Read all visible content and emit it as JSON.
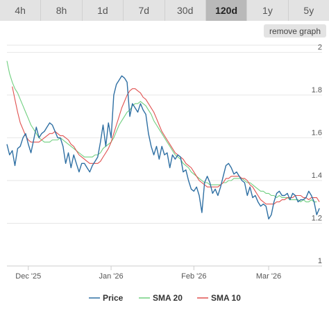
{
  "tabs": [
    {
      "label": "4h"
    },
    {
      "label": "8h"
    },
    {
      "label": "1d"
    },
    {
      "label": "7d"
    },
    {
      "label": "30d"
    },
    {
      "label": "120d"
    },
    {
      "label": "1y"
    },
    {
      "label": "5y"
    }
  ],
  "active_tab": "120d",
  "remove_graph_label": "remove graph",
  "chart_data": {
    "type": "line",
    "ylim": [
      1.0,
      2.05
    ],
    "y_ticks": [
      1,
      1.2,
      1.4,
      1.6,
      1.8,
      2
    ],
    "x_ticks": [
      {
        "label": "Dec '25",
        "x": 8
      },
      {
        "label": "Jan '26",
        "x": 39
      },
      {
        "label": "Feb '26",
        "x": 70
      },
      {
        "label": "Mar '26",
        "x": 98
      }
    ],
    "x_range": [
      0,
      118
    ],
    "legend_position": "bottom",
    "grid": true,
    "series": [
      {
        "name": "Price",
        "color": "#2e6fa3",
        "values": [
          1.57,
          1.52,
          1.54,
          1.47,
          1.55,
          1.56,
          1.6,
          1.62,
          1.57,
          1.53,
          1.59,
          1.65,
          1.6,
          1.62,
          1.63,
          1.65,
          1.67,
          1.66,
          1.63,
          1.6,
          1.6,
          1.56,
          1.48,
          1.53,
          1.46,
          1.52,
          1.48,
          1.44,
          1.48,
          1.48,
          1.46,
          1.44,
          1.47,
          1.49,
          1.51,
          1.58,
          1.66,
          1.56,
          1.67,
          1.6,
          1.8,
          1.85,
          1.87,
          1.89,
          1.88,
          1.86,
          1.7,
          1.76,
          1.74,
          1.72,
          1.76,
          1.73,
          1.71,
          1.62,
          1.56,
          1.52,
          1.56,
          1.5,
          1.56,
          1.52,
          1.53,
          1.46,
          1.52,
          1.5,
          1.52,
          1.51,
          1.44,
          1.45,
          1.4,
          1.36,
          1.35,
          1.37,
          1.33,
          1.25,
          1.39,
          1.42,
          1.39,
          1.34,
          1.36,
          1.33,
          1.37,
          1.42,
          1.47,
          1.48,
          1.46,
          1.43,
          1.44,
          1.42,
          1.4,
          1.39,
          1.33,
          1.37,
          1.32,
          1.33,
          1.3,
          1.28,
          1.29,
          1.28,
          1.22,
          1.24,
          1.3,
          1.34,
          1.35,
          1.33,
          1.33,
          1.34,
          1.31,
          1.34,
          1.33,
          1.3,
          1.31,
          1.31,
          1.32,
          1.35,
          1.33,
          1.3,
          1.24,
          1.27
        ],
        "start": 0
      },
      {
        "name": "SMA 20",
        "color": "#6fcf7f",
        "values": [
          1.96,
          1.9,
          1.86,
          1.83,
          1.81,
          1.78,
          1.75,
          1.72,
          1.69,
          1.66,
          1.64,
          1.62,
          1.6,
          1.59,
          1.58,
          1.58,
          1.58,
          1.59,
          1.59,
          1.59,
          1.6,
          1.59,
          1.58,
          1.57,
          1.56,
          1.55,
          1.54,
          1.53,
          1.52,
          1.51,
          1.51,
          1.51,
          1.51,
          1.52,
          1.52,
          1.53,
          1.55,
          1.56,
          1.57,
          1.58,
          1.6,
          1.63,
          1.66,
          1.68,
          1.7,
          1.72,
          1.73,
          1.75,
          1.76,
          1.76,
          1.77,
          1.76,
          1.75,
          1.73,
          1.71,
          1.68,
          1.66,
          1.64,
          1.62,
          1.6,
          1.58,
          1.56,
          1.54,
          1.52,
          1.51,
          1.5,
          1.48,
          1.47,
          1.46,
          1.44,
          1.43,
          1.42,
          1.41,
          1.4,
          1.39,
          1.39,
          1.38,
          1.38,
          1.38,
          1.38,
          1.38,
          1.39,
          1.39,
          1.4,
          1.4,
          1.41,
          1.41,
          1.41,
          1.41,
          1.4,
          1.39,
          1.39,
          1.38,
          1.37,
          1.36,
          1.35,
          1.35,
          1.34,
          1.34,
          1.33,
          1.33,
          1.32,
          1.33,
          1.32,
          1.32,
          1.32,
          1.31,
          1.31,
          1.31,
          1.31,
          1.3,
          1.31,
          1.3,
          1.3,
          1.31,
          1.3,
          1.3
        ],
        "start": 0
      },
      {
        "name": "SMA 10",
        "color": "#e0504f",
        "values": [
          1.84,
          1.78,
          1.72,
          1.67,
          1.64,
          1.61,
          1.59,
          1.58,
          1.58,
          1.58,
          1.58,
          1.59,
          1.6,
          1.61,
          1.62,
          1.62,
          1.63,
          1.62,
          1.61,
          1.61,
          1.6,
          1.59,
          1.57,
          1.56,
          1.54,
          1.52,
          1.51,
          1.5,
          1.49,
          1.48,
          1.48,
          1.48,
          1.48,
          1.49,
          1.51,
          1.53,
          1.55,
          1.58,
          1.62,
          1.66,
          1.7,
          1.74,
          1.77,
          1.8,
          1.82,
          1.83,
          1.83,
          1.82,
          1.81,
          1.79,
          1.78,
          1.76,
          1.74,
          1.72,
          1.69,
          1.66,
          1.63,
          1.61,
          1.59,
          1.57,
          1.55,
          1.53,
          1.52,
          1.51,
          1.5,
          1.48,
          1.47,
          1.46,
          1.44,
          1.42,
          1.4,
          1.39,
          1.38,
          1.37,
          1.37,
          1.37,
          1.37,
          1.37,
          1.38,
          1.39,
          1.41,
          1.41,
          1.42,
          1.42,
          1.42,
          1.42,
          1.41,
          1.41,
          1.4,
          1.38,
          1.37,
          1.35,
          1.33,
          1.31,
          1.3,
          1.29,
          1.29,
          1.29,
          1.29,
          1.3,
          1.3,
          1.31,
          1.31,
          1.32,
          1.32,
          1.32,
          1.33,
          1.33,
          1.33,
          1.32,
          1.32,
          1.31,
          1.32,
          1.32,
          1.32,
          1.3
        ],
        "start": 2
      }
    ]
  }
}
